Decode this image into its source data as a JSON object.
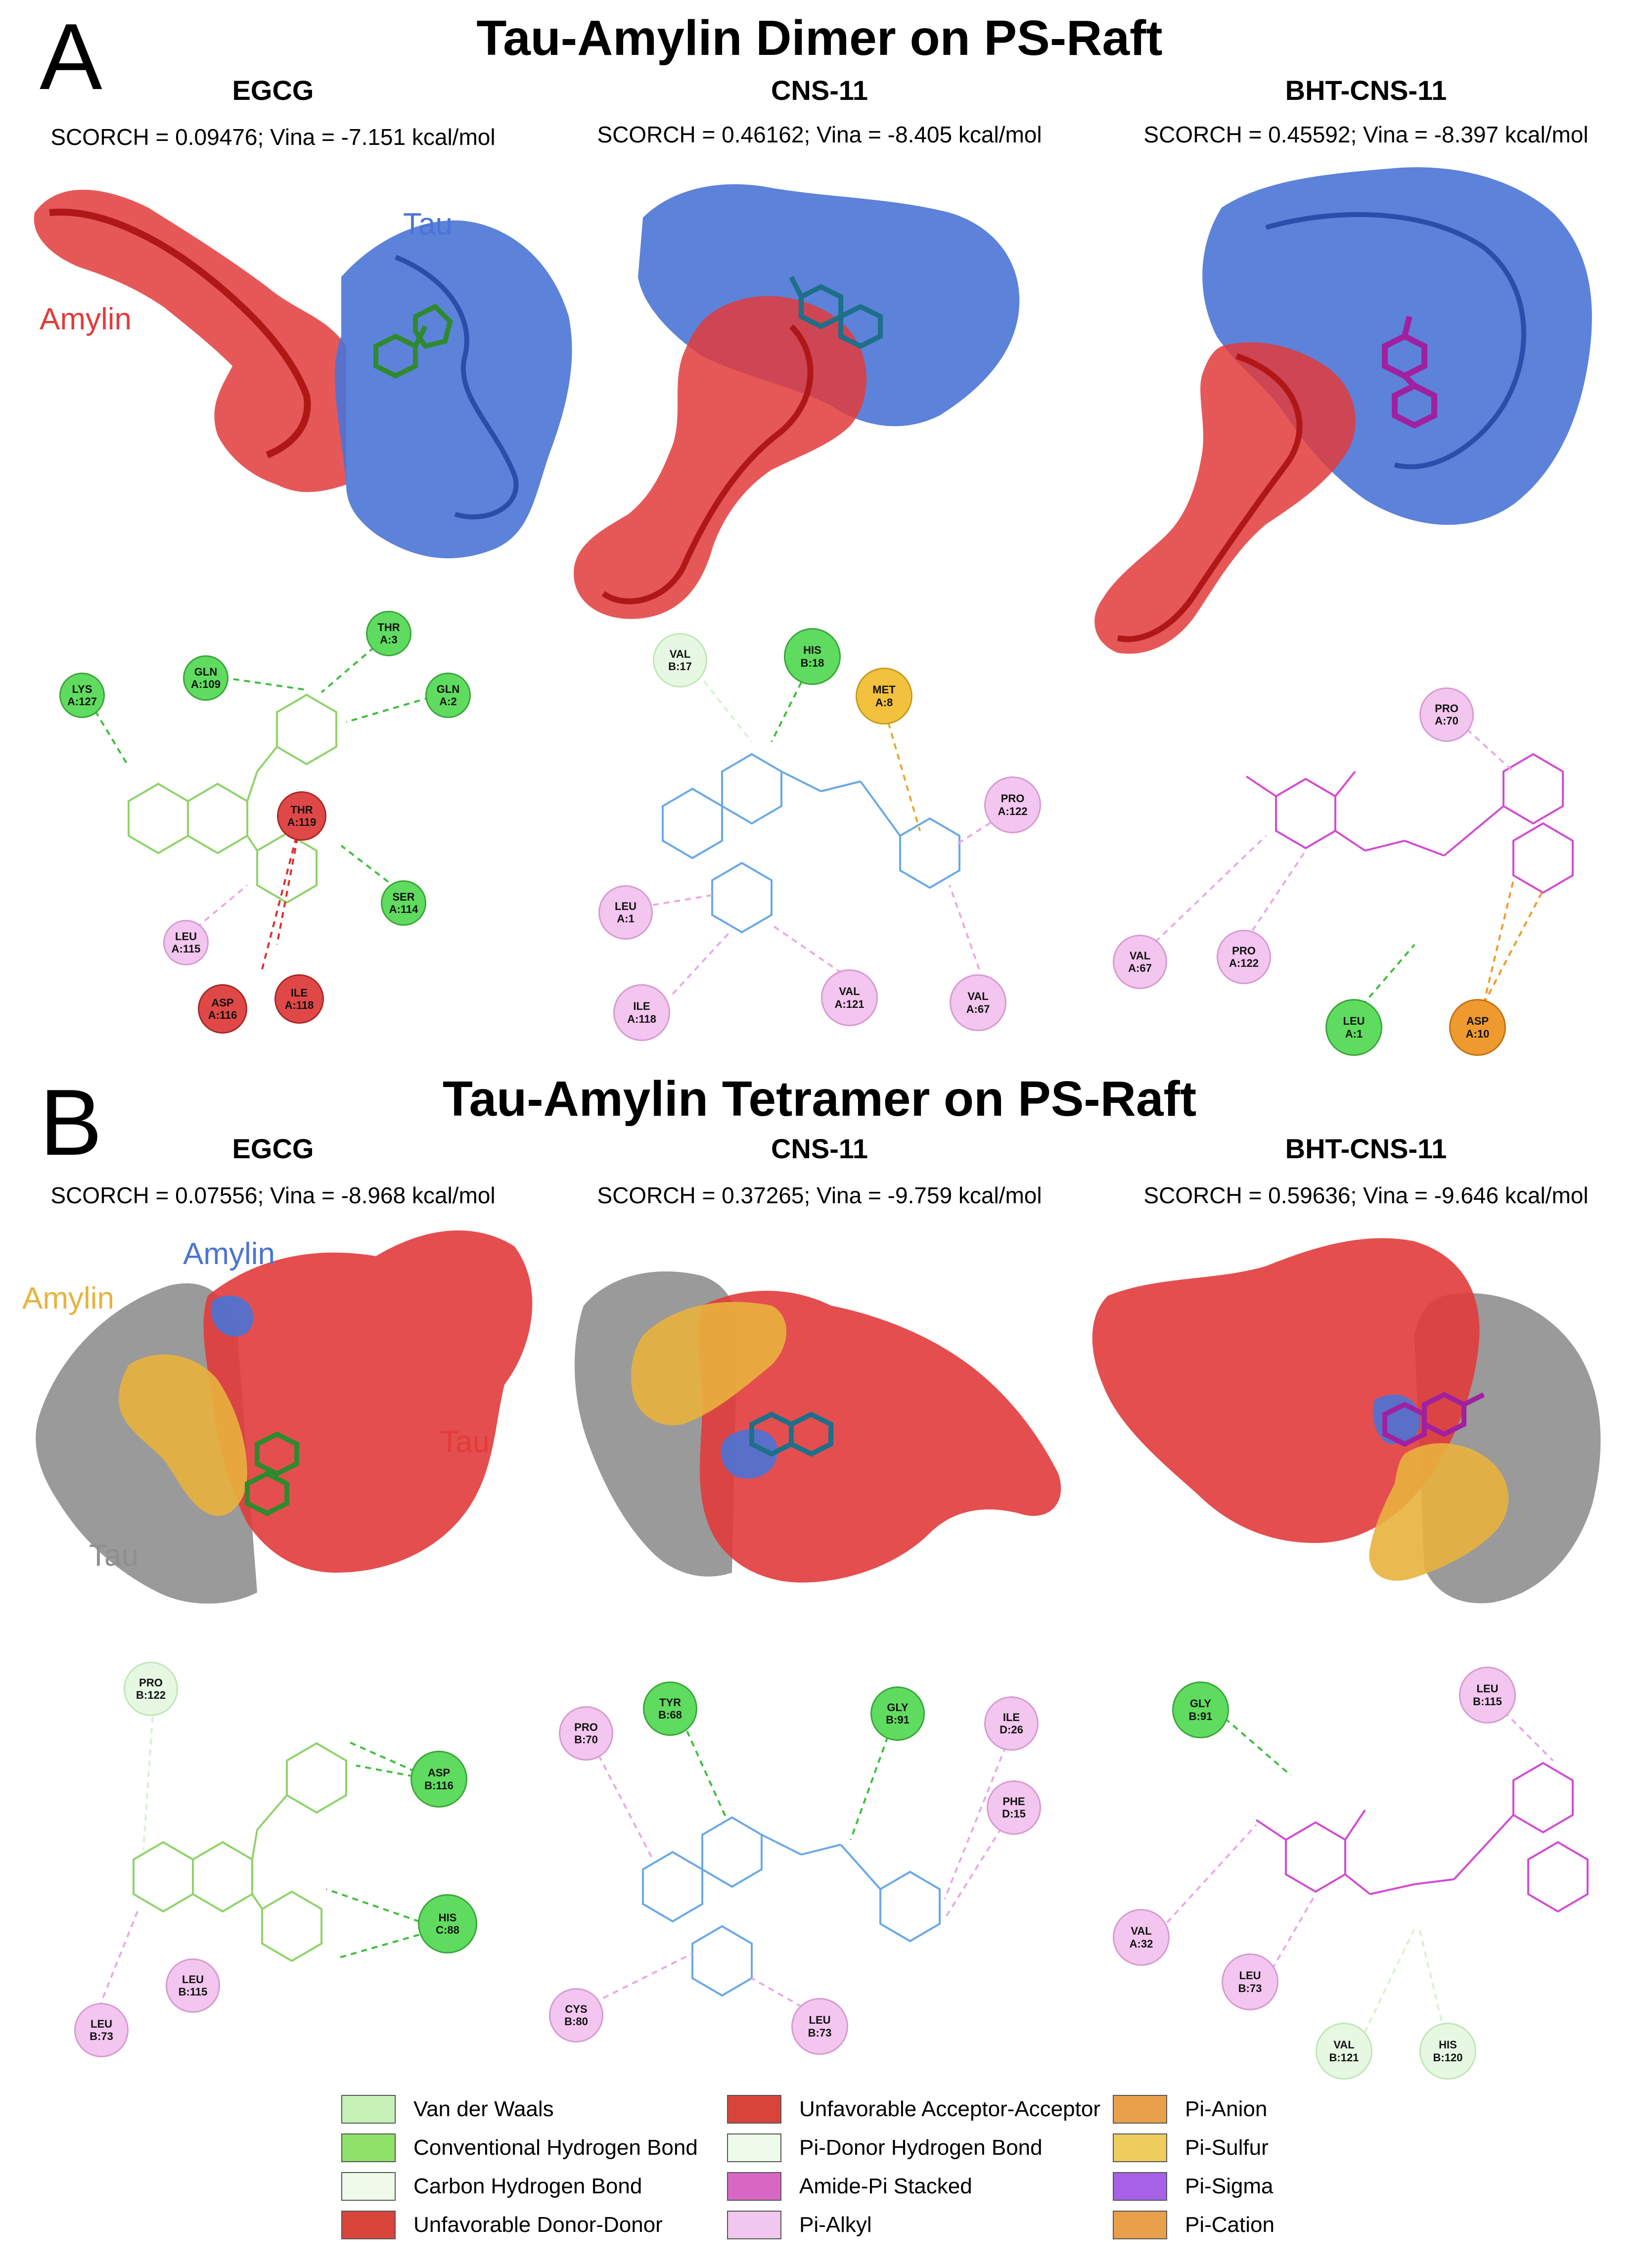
{
  "panel_a": {
    "letter": "A",
    "title": "Tau-Amylin Dimer on PS-Raft",
    "columns": [
      {
        "name": "EGCG",
        "score": "SCORCH = 0.09476; Vina = -7.151 kcal/mol"
      },
      {
        "name": "CNS-11",
        "score": "SCORCH = 0.46162; Vina = -8.405 kcal/mol"
      },
      {
        "name": "BHT-CNS-11",
        "score": "SCORCH = 0.45592; Vina = -8.397 kcal/mol"
      }
    ],
    "labels": {
      "tau": "Tau",
      "amylin": "Amylin"
    }
  },
  "panel_b": {
    "letter": "B",
    "title": "Tau-Amylin Tetramer on PS-Raft",
    "columns": [
      {
        "name": "EGCG",
        "score": "SCORCH = 0.07556; Vina = -8.968 kcal/mol"
      },
      {
        "name": "CNS-11",
        "score": "SCORCH = 0.37265; Vina = -9.759 kcal/mol"
      },
      {
        "name": "BHT-CNS-11",
        "score": "SCORCH = 0.59636; Vina = -9.646 kcal/mol"
      }
    ],
    "labels": {
      "amylin_blue": "Amylin",
      "amylin_yellow": "Amylin",
      "tau_red": "Tau",
      "tau_gray": "Tau"
    }
  },
  "colors": {
    "tau_blue": "#4a74d6",
    "amylin_red": "#e23b3b",
    "tau_gray": "#8f8f8f",
    "amylin_yellow": "#e8b23e",
    "egcg_ligand": "#2f8a2f",
    "cns11_ligand": "#1d6f8a",
    "bht_ligand": "#a020a0",
    "egcg_2d": "#8fd36a",
    "cns11_2d": "#6aa8e8",
    "bht_2d": "#d24cd2"
  },
  "residues": {
    "a_egcg": [
      {
        "name": "LYS",
        "id": "A:127",
        "type": "conv_hb"
      },
      {
        "name": "GLN",
        "id": "A:109",
        "type": "conv_hb"
      },
      {
        "name": "THR",
        "id": "A:3",
        "type": "conv_hb"
      },
      {
        "name": "GLN",
        "id": "A:2",
        "type": "conv_hb"
      },
      {
        "name": "THR",
        "id": "A:119",
        "type": "unfav"
      },
      {
        "name": "SER",
        "id": "A:114",
        "type": "conv_hb"
      },
      {
        "name": "LEU",
        "id": "A:115",
        "type": "pi_alkyl"
      },
      {
        "name": "ASP",
        "id": "A:116",
        "type": "unfav"
      },
      {
        "name": "ILE",
        "id": "A:118",
        "type": "unfav"
      }
    ],
    "a_cns11": [
      {
        "name": "VAL",
        "id": "B:17",
        "type": "pi_donor"
      },
      {
        "name": "HIS",
        "id": "B:18",
        "type": "conv_hb"
      },
      {
        "name": "MET",
        "id": "A:8",
        "type": "pi_sulfur"
      },
      {
        "name": "PRO",
        "id": "A:122",
        "type": "pi_alkyl"
      },
      {
        "name": "LEU",
        "id": "A:1",
        "type": "pi_alkyl"
      },
      {
        "name": "ILE",
        "id": "A:118",
        "type": "pi_alkyl"
      },
      {
        "name": "VAL",
        "id": "A:121",
        "type": "pi_alkyl"
      },
      {
        "name": "VAL",
        "id": "A:67",
        "type": "pi_alkyl"
      }
    ],
    "a_bht": [
      {
        "name": "PRO",
        "id": "A:70",
        "type": "pi_alkyl"
      },
      {
        "name": "VAL",
        "id": "A:67",
        "type": "pi_alkyl"
      },
      {
        "name": "PRO",
        "id": "A:122",
        "type": "pi_alkyl"
      },
      {
        "name": "LEU",
        "id": "A:1",
        "type": "conv_hb"
      },
      {
        "name": "ASP",
        "id": "A:10",
        "type": "pi_anion"
      }
    ],
    "b_egcg": [
      {
        "name": "PRO",
        "id": "B:122",
        "type": "pi_donor"
      },
      {
        "name": "ASP",
        "id": "B:116",
        "type": "conv_hb"
      },
      {
        "name": "HIS",
        "id": "C:88",
        "type": "conv_hb"
      },
      {
        "name": "LEU",
        "id": "B:115",
        "type": "pi_alkyl"
      },
      {
        "name": "LEU",
        "id": "B:73",
        "type": "pi_alkyl"
      }
    ],
    "b_cns11": [
      {
        "name": "PRO",
        "id": "B:70",
        "type": "pi_alkyl"
      },
      {
        "name": "TYR",
        "id": "B:68",
        "type": "conv_hb"
      },
      {
        "name": "GLY",
        "id": "B:91",
        "type": "conv_hb"
      },
      {
        "name": "ILE",
        "id": "D:26",
        "type": "pi_alkyl"
      },
      {
        "name": "PHE",
        "id": "D:15",
        "type": "pi_alkyl"
      },
      {
        "name": "CYS",
        "id": "B:80",
        "type": "pi_alkyl"
      },
      {
        "name": "LEU",
        "id": "B:73",
        "type": "pi_alkyl"
      }
    ],
    "b_bht": [
      {
        "name": "GLY",
        "id": "B:91",
        "type": "conv_hb"
      },
      {
        "name": "LEU",
        "id": "B:115",
        "type": "pi_alkyl"
      },
      {
        "name": "VAL",
        "id": "A:32",
        "type": "pi_alkyl"
      },
      {
        "name": "LEU",
        "id": "B:73",
        "type": "pi_alkyl"
      },
      {
        "name": "VAL",
        "id": "B:121",
        "type": "pi_donor"
      },
      {
        "name": "HIS",
        "id": "B:120",
        "type": "pi_donor"
      }
    ]
  },
  "residue_colors": {
    "conv_hb": "#5fdc5f",
    "unfav": "#e04848",
    "pi_alkyl": "#f2c6ee",
    "pi_donor": "#e6f8e2",
    "pi_sulfur": "#f2c13e",
    "pi_anion": "#ef9a2e"
  },
  "legend": [
    {
      "label": "Van der Waals",
      "color": "#c6f2b8"
    },
    {
      "label": "Conventional Hydrogen Bond",
      "color": "#8ee26a"
    },
    {
      "label": "Carbon Hydrogen Bond",
      "color": "#eefbea"
    },
    {
      "label": "Unfavorable Donor-Donor",
      "color": "#d9443a"
    },
    {
      "label": "Unfavorable Acceptor-Acceptor",
      "color": "#d9443a"
    },
    {
      "label": "Pi-Donor Hydrogen Bond",
      "color": "#eefbea"
    },
    {
      "label": "Amide-Pi Stacked",
      "color": "#d867c4"
    },
    {
      "label": "Pi-Alkyl",
      "color": "#f0c8ef"
    },
    {
      "label": "Pi-Anion",
      "color": "#e8a04a"
    },
    {
      "label": "Pi-Sulfur",
      "color": "#efcd5c"
    },
    {
      "label": "Pi-Sigma",
      "color": "#a661e6"
    },
    {
      "label": "Pi-Cation",
      "color": "#e8a04a"
    }
  ]
}
